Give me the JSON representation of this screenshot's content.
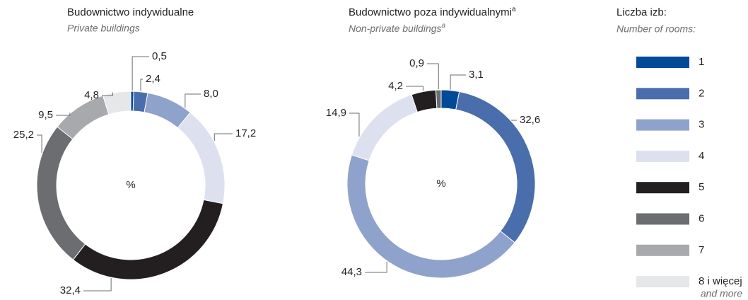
{
  "chart_data": [
    {
      "type": "donut",
      "title": "Budownictwo indywidualne",
      "subtitle": "Private buildings",
      "center_label": "%",
      "values": [
        0.5,
        2.4,
        8.0,
        17.2,
        32.4,
        25.2,
        9.5,
        4.8
      ],
      "value_labels": [
        "0,5",
        "2,4",
        "8,0",
        "17,2",
        "32,4",
        "25,2",
        "9,5",
        "4,8"
      ]
    },
    {
      "type": "donut",
      "title": "Budownictwo poza indywidualnymi",
      "title_note": "a",
      "subtitle": "Non-private buildings",
      "subtitle_note": "a",
      "center_label": "%",
      "values": [
        3.1,
        32.6,
        44.3,
        14.9,
        4.2,
        0.9
      ],
      "value_labels": [
        "3,1",
        "32,6",
        "44,3",
        "14,9",
        "4,2",
        "0,9"
      ]
    }
  ],
  "legend": {
    "title": "Liczba izb:",
    "subtitle": "Number of rooms:",
    "categories": [
      "1",
      "2",
      "3",
      "4",
      "5",
      "6",
      "7",
      "8 i więcej"
    ],
    "last_note": "and more",
    "colors": [
      "#004a98",
      "#4a6dab",
      "#8fa2cc",
      "#dde1ef",
      "#231f20",
      "#6b6d70",
      "#a7a9ac",
      "#e6e7e8"
    ]
  }
}
